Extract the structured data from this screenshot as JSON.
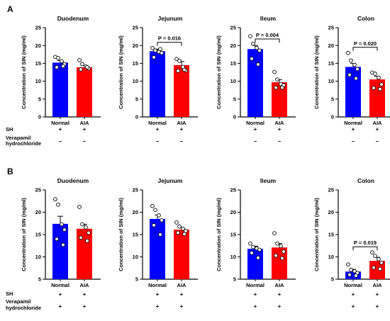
{
  "figure": {
    "panels": [
      {
        "letter": "A",
        "condition_labels": [
          "SH",
          "Verapamil",
          "hydrochloride"
        ]
      },
      {
        "letter": "B",
        "condition_labels": [
          "SH",
          "Verapamil",
          "hydrochloride"
        ]
      }
    ]
  },
  "chart_data": [
    {
      "type": "bar",
      "panel": "A",
      "title": "Duodenum",
      "ylabel": "Concentration of SIN (mg/ml)",
      "categories": [
        "Normal",
        "AIA"
      ],
      "ylim": [
        0,
        25
      ],
      "yticks": [
        0,
        5,
        10,
        15,
        20,
        25
      ],
      "series": [
        {
          "values": [
            15.2,
            13.9
          ],
          "errors": [
            0.6,
            0.5
          ],
          "colors": [
            "#0000ff",
            "#ff0000"
          ]
        }
      ],
      "points": [
        [
          16.8,
          16.5,
          15.6,
          14.8,
          13.9,
          14.2
        ],
        [
          15.9,
          14.8,
          14.1,
          13.6,
          13.3,
          13.9
        ]
      ],
      "conditions": [
        [
          "+",
          "+"
        ],
        [
          "–",
          "–"
        ]
      ],
      "pvalue": null
    },
    {
      "type": "bar",
      "panel": "A",
      "title": "Jejunum",
      "ylabel": "Concentration of SIN (mg/ml)",
      "categories": [
        "Normal",
        "AIA"
      ],
      "ylim": [
        0,
        25
      ],
      "yticks": [
        0,
        5,
        10,
        15,
        20,
        25
      ],
      "series": [
        {
          "values": [
            18.4,
            14.5
          ],
          "errors": [
            0.6,
            1.0
          ],
          "colors": [
            "#0000ff",
            "#ff0000"
          ]
        }
      ],
      "points": [
        [
          19.3,
          18.6,
          18.2,
          17.9,
          16.7,
          19.0
        ],
        [
          16.2,
          15.7,
          14.0,
          13.0,
          12.9,
          13.2
        ]
      ],
      "conditions": [
        [
          "+",
          "+"
        ],
        [
          "–",
          "–"
        ]
      ],
      "pvalue": "P = 0.016"
    },
    {
      "type": "bar",
      "panel": "A",
      "title": "Ileum",
      "ylabel": "Concentration of SIN (mg/ml)",
      "categories": [
        "Normal",
        "AIA"
      ],
      "ylim": [
        0,
        25
      ],
      "yticks": [
        0,
        5,
        10,
        15,
        20,
        25
      ],
      "series": [
        {
          "values": [
            19.0,
            9.7
          ],
          "errors": [
            1.0,
            0.7
          ],
          "colors": [
            "#0000ff",
            "#ff0000"
          ]
        }
      ],
      "points": [
        [
          22.6,
          20.5,
          19.3,
          18.6,
          16.3,
          14.7
        ],
        [
          12.6,
          10.5,
          9.2,
          8.9,
          8.2,
          8.2
        ]
      ],
      "conditions": [
        [
          "+",
          "+"
        ],
        [
          "–",
          "–"
        ]
      ],
      "pvalue": "P = 0.004"
    },
    {
      "type": "bar",
      "panel": "A",
      "title": "Colon",
      "ylabel": "Concentration of SIN (mg/ml)",
      "categories": [
        "Normal",
        "AIA"
      ],
      "ylim": [
        0,
        25
      ],
      "yticks": [
        0,
        5,
        10,
        15,
        20,
        25
      ],
      "series": [
        {
          "values": [
            14.0,
            10.5
          ],
          "errors": [
            1.0,
            0.9
          ],
          "colors": [
            "#0000ff",
            "#ff0000"
          ]
        }
      ],
      "points": [
        [
          17.9,
          15.8,
          14.6,
          13.4,
          11.8,
          10.8
        ],
        [
          12.4,
          12.1,
          11.0,
          9.1,
          8.1,
          7.8
        ]
      ],
      "conditions": [
        [
          "+",
          "+"
        ],
        [
          "–",
          "–"
        ]
      ],
      "pvalue": "P = 0.020"
    },
    {
      "type": "bar",
      "panel": "B",
      "title": "Duodenum",
      "ylabel": "Concentration of SIN (mg/ml)",
      "categories": [
        "Normal",
        "AIA"
      ],
      "ylim": [
        5,
        25
      ],
      "yticks": [
        5,
        10,
        15,
        20,
        25
      ],
      "series": [
        {
          "values": [
            17.4,
            16.3
          ],
          "errors": [
            1.7,
            1.0
          ],
          "colors": [
            "#0000ff",
            "#ff0000"
          ]
        }
      ],
      "points": [
        [
          22.9,
          21.7,
          17.3,
          16.1,
          14.0,
          12.7
        ],
        [
          21.2,
          17.3,
          16.6,
          15.4,
          14.3,
          13.6
        ]
      ],
      "conditions": [
        [
          "+",
          "+"
        ],
        [
          "+",
          "+"
        ]
      ],
      "pvalue": null
    },
    {
      "type": "bar",
      "panel": "B",
      "title": "Jejunum",
      "ylabel": "Concentration of SIN (mg/ml)",
      "categories": [
        "Normal",
        "AIA"
      ],
      "ylim": [
        5,
        25
      ],
      "yticks": [
        5,
        10,
        15,
        20,
        25
      ],
      "series": [
        {
          "values": [
            18.5,
            16.1
          ],
          "errors": [
            0.9,
            0.4
          ],
          "colors": [
            "#0000ff",
            "#ff0000"
          ]
        }
      ],
      "points": [
        [
          21.4,
          20.5,
          19.3,
          18.2,
          17.1,
          15.0
        ],
        [
          17.7,
          16.8,
          16.3,
          15.8,
          15.4,
          15.1
        ]
      ],
      "conditions": [
        [
          "+",
          "+"
        ],
        [
          "+",
          "+"
        ]
      ],
      "pvalue": null
    },
    {
      "type": "bar",
      "panel": "B",
      "title": "Ileum",
      "ylabel": "Concentration of SIN (mg/ml)",
      "categories": [
        "Normal",
        "AIA"
      ],
      "ylim": [
        5,
        25
      ],
      "yticks": [
        5,
        10,
        15,
        20,
        25
      ],
      "series": [
        {
          "values": [
            11.8,
            12.1
          ],
          "errors": [
            0.6,
            0.9
          ],
          "colors": [
            "#0000ff",
            "#ff0000"
          ]
        }
      ],
      "points": [
        [
          13.0,
          12.2,
          11.9,
          11.6,
          10.9,
          9.8
        ],
        [
          15.3,
          13.0,
          12.4,
          11.2,
          10.3,
          9.7
        ]
      ],
      "conditions": [
        [
          "+",
          "+"
        ],
        [
          "+",
          "+"
        ]
      ],
      "pvalue": null
    },
    {
      "type": "bar",
      "panel": "B",
      "title": "Colon",
      "ylabel": "Concentration of SIN (mg/ml)",
      "categories": [
        "Normal",
        "AIA"
      ],
      "ylim": [
        5,
        25
      ],
      "yticks": [
        5,
        10,
        15,
        20,
        25
      ],
      "series": [
        {
          "values": [
            6.7,
            9.1
          ],
          "errors": [
            0.5,
            0.8
          ],
          "colors": [
            "#0000ff",
            "#ff0000"
          ]
        }
      ],
      "points": [
        [
          8.3,
          7.1,
          6.8,
          6.4,
          6.0,
          5.8
        ],
        [
          11.0,
          10.2,
          9.5,
          8.7,
          7.6,
          7.3
        ]
      ],
      "conditions": [
        [
          "+",
          "+"
        ],
        [
          "+",
          "+"
        ]
      ],
      "pvalue": "P = 0.019"
    }
  ]
}
